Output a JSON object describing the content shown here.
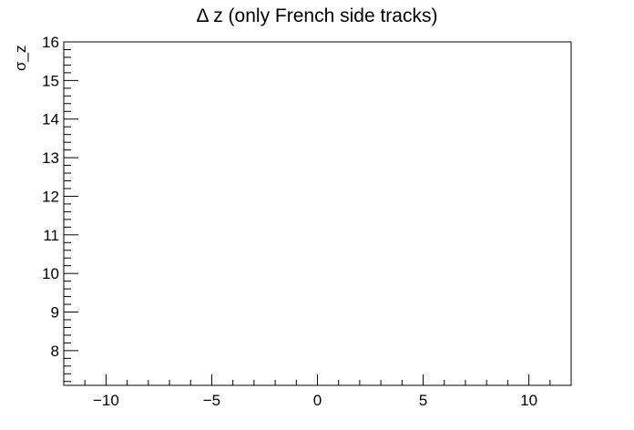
{
  "chart_data": {
    "type": "scatter",
    "title": "Δ z (only French side tracks)",
    "xlabel": "",
    "ylabel": "σ_z",
    "xlim": [
      -12,
      12
    ],
    "ylim": [
      7.1,
      16
    ],
    "x_ticks": [
      -10,
      -5,
      0,
      5,
      10
    ],
    "y_ticks": [
      8,
      9,
      10,
      11,
      12,
      13,
      14,
      15,
      16
    ],
    "series": [],
    "grid": false,
    "legend": "none"
  }
}
